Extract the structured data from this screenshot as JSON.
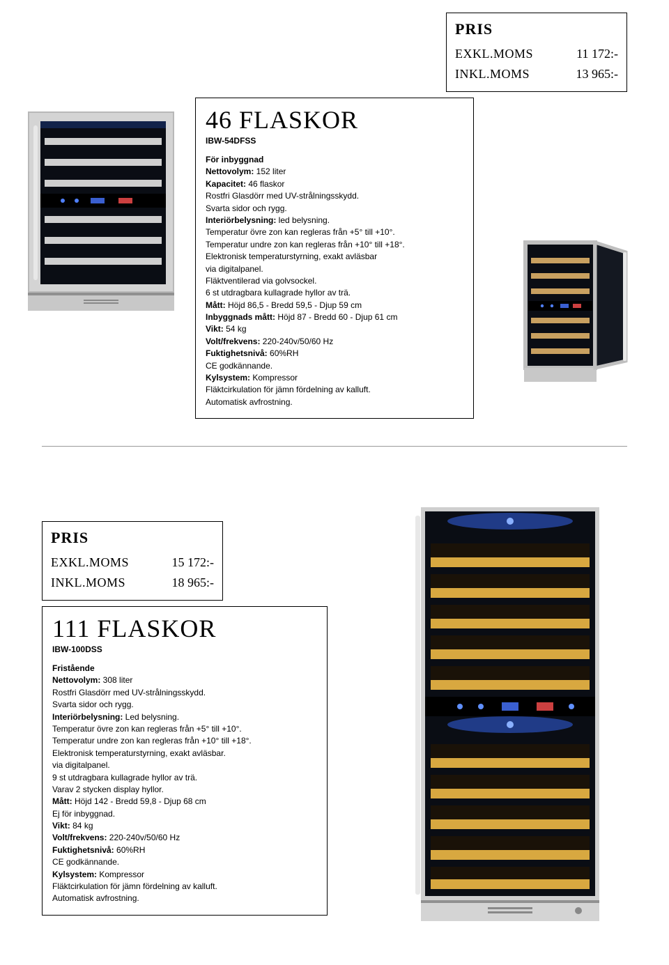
{
  "pris_top": {
    "title": "PRIS",
    "rows": [
      {
        "label": "EXKL.MOMS",
        "value": "11 172:-"
      },
      {
        "label": "INKL.MOMS",
        "value": "13 965:-"
      }
    ]
  },
  "pris_bottom": {
    "title": "PRIS",
    "rows": [
      {
        "label": "EXKL.MOMS",
        "value": "15 172:-"
      },
      {
        "label": "INKL.MOMS",
        "value": "18 965:-"
      }
    ]
  },
  "product_top": {
    "headline": "46 FLASKOR",
    "model": "IBW-54DFSS",
    "lines": [
      {
        "b": "För inbyggnad",
        "t": ""
      },
      {
        "b": "Nettovolym:",
        "t": " 152 liter"
      },
      {
        "b": "Kapacitet:",
        "t": " 46 flaskor"
      },
      {
        "b": "",
        "t": "Rostfri Glasdörr med UV-strålningsskydd."
      },
      {
        "b": "",
        "t": "Svarta sidor och rygg."
      },
      {
        "b": "Interiörbelysning:",
        "t": " led belysning."
      },
      {
        "b": "",
        "t": "Temperatur övre zon kan regleras från +5° till +10°."
      },
      {
        "b": "",
        "t": "Temperatur undre zon kan regleras från +10° till +18°."
      },
      {
        "b": "",
        "t": "Elektronisk temperaturstyrning, exakt avläsbar"
      },
      {
        "b": "",
        "t": "via digitalpanel."
      },
      {
        "b": "",
        "t": "Fläktventilerad via golvsockel."
      },
      {
        "b": "",
        "t": "6 st utdragbara kullagrade hyllor av trä."
      },
      {
        "b": "Mått:",
        "t": " Höjd 86,5 - Bredd 59,5 - Djup 59 cm"
      },
      {
        "b": "Inbyggnads mått:",
        "t": " Höjd 87 - Bredd 60 - Djup 61 cm"
      },
      {
        "b": "Vikt:",
        "t": " 54 kg"
      },
      {
        "b": "Volt/frekvens:",
        "t": " 220-240v/50/60 Hz"
      },
      {
        "b": "Fuktighetsnivå:",
        "t": " 60%RH"
      },
      {
        "b": "",
        "t": "CE godkännande."
      },
      {
        "b": "Kylsystem:",
        "t": " Kompressor"
      },
      {
        "b": "",
        "t": "Fläktcirkulation för jämn fördelning av kalluft."
      },
      {
        "b": "",
        "t": "Automatisk avfrostning."
      }
    ]
  },
  "product_bottom": {
    "headline": "111 FLASKOR",
    "model": "IBW-100DSS",
    "lines": [
      {
        "b": "Fristående",
        "t": ""
      },
      {
        "b": "Nettovolym:",
        "t": " 308 liter"
      },
      {
        "b": "",
        "t": "Rostfri Glasdörr med UV-strålningsskydd."
      },
      {
        "b": "",
        "t": "Svarta sidor och rygg."
      },
      {
        "b": "Interiörbelysning:",
        "t": " Led belysning."
      },
      {
        "b": "",
        "t": "Temperatur övre zon kan regleras från +5° till +10°."
      },
      {
        "b": "",
        "t": "Temperatur undre zon kan regleras från +10° till +18°."
      },
      {
        "b": "",
        "t": "Elektronisk temperaturstyrning, exakt avläsbar."
      },
      {
        "b": "",
        "t": "via digitalpanel."
      },
      {
        "b": "",
        "t": "9 st utdragbara kullagrade hyllor av trä."
      },
      {
        "b": "",
        "t": "Varav 2 stycken display hyllor."
      },
      {
        "b": "Mått:",
        "t": " Höjd 142 - Bredd 59,8 - Djup 68 cm"
      },
      {
        "b": "",
        "t": "Ej för inbyggnad."
      },
      {
        "b": "Vikt:",
        "t": " 84 kg"
      },
      {
        "b": "Volt/frekvens:",
        "t": " 220-240v/50/60 Hz"
      },
      {
        "b": "Fuktighetsnivå:",
        "t": " 60%RH"
      },
      {
        "b": "",
        "t": "CE godkännande."
      },
      {
        "b": "Kylsystem:",
        "t": " Kompressor"
      },
      {
        "b": "",
        "t": "Fläktcirkulation för jämn fördelning av kalluft."
      },
      {
        "b": "",
        "t": "Automatisk avfrostning."
      }
    ]
  },
  "cooler_colors": {
    "frame": "#b8b8b8",
    "frame_dark": "#7a7a7a",
    "glass": "#0a0d14",
    "shelf_wood_top": "#c8a060",
    "shelf_wood_bottom": "#d8a840",
    "shelf_metal": "#cfcfcf",
    "display_bg": "#000000",
    "display_led": "#7090ff",
    "interior_light": "#4080ff",
    "handle": "#d0d0d0"
  }
}
